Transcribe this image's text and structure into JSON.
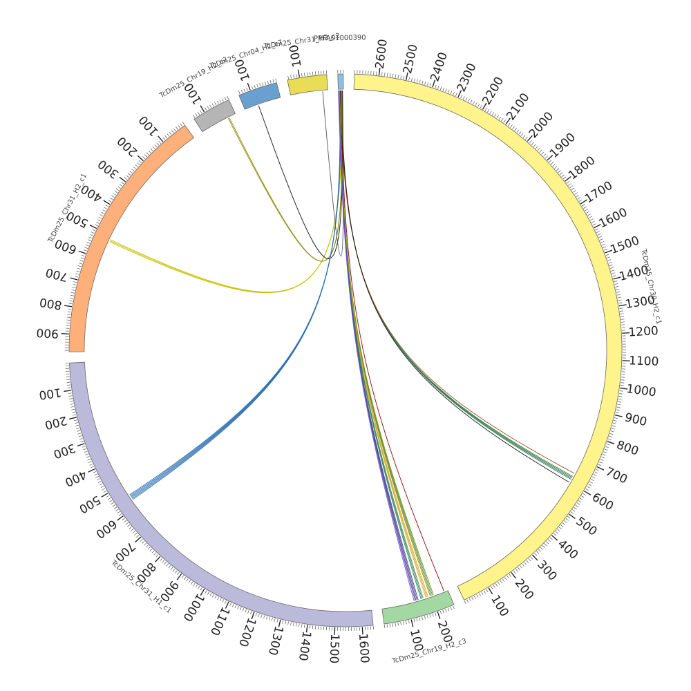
{
  "diagram": {
    "type": "circos",
    "segments": [
      {
        "id": "PRFA",
        "label": "PRFA01000390",
        "length": 20,
        "color": "#8dc0df",
        "label_every": 100,
        "minor_every": 10
      },
      {
        "id": "chr30",
        "label": "TcDm25_Chr30_H2_c1",
        "length": 2690,
        "color": "#fff38b",
        "label_every": 100,
        "minor_every": 10
      },
      {
        "id": "chr19c3",
        "label": "TcDm25_Chr19_H2_c3",
        "length": 265,
        "color": "#a3d8a3",
        "label_every": 100,
        "minor_every": 10
      },
      {
        "id": "chr31h1",
        "label": "TcDm25_Chr31_H1_c1",
        "length": 1640,
        "color": "#bcbada",
        "label_every": 100,
        "minor_every": 10
      },
      {
        "id": "chr31h2",
        "label": "TcDm25_Chr31_H2_c1",
        "length": 965,
        "color": "#ffb07a",
        "label_every": 100,
        "minor_every": 10
      },
      {
        "id": "chr19",
        "label": "TcDm25_Chr19_H2_c2",
        "length": 145,
        "color": "#b5b5b5",
        "label_every": 100,
        "minor_every": 10
      },
      {
        "id": "chr04",
        "label": "TcDm25_Chr04_H2_c7",
        "length": 145,
        "color": "#6aa0cf",
        "label_every": 100,
        "minor_every": 10
      },
      {
        "id": "chr31h2b",
        "label": "TcDm25_Chr31_H2_c2",
        "length": 145,
        "color": "#e8dd55",
        "label_every": 100,
        "minor_every": 10
      }
    ],
    "links": [
      {
        "from": [
          "PRFA",
          10
        ],
        "to": [
          "chr30",
          620
        ],
        "color": "#2f7a4a",
        "count": 4
      },
      {
        "from": [
          "PRFA",
          12
        ],
        "to": [
          "chr30",
          640
        ],
        "color": "#a0522d",
        "count": 1
      },
      {
        "from": [
          "PRFA",
          8
        ],
        "to": [
          "chr30",
          600
        ],
        "color": "#111111",
        "count": 1
      },
      {
        "from": [
          "PRFA",
          6
        ],
        "to": [
          "chr31h2",
          520
        ],
        "color": "#c8c000",
        "count": 3
      },
      {
        "from": [
          "PRFA",
          5
        ],
        "to": [
          "chr19",
          30
        ],
        "color": "#8a8a00",
        "count": 2
      },
      {
        "from": [
          "PRFA",
          4
        ],
        "to": [
          "chr04",
          90
        ],
        "color": "#111111",
        "count": 1
      },
      {
        "from": [
          "PRFA",
          3
        ],
        "to": [
          "chr31h2b",
          20
        ],
        "color": "#555555",
        "count": 1
      },
      {
        "from": [
          "PRFA",
          14
        ],
        "to": [
          "chr31h1",
          560
        ],
        "color": "#2a6fb0",
        "count": 6
      },
      {
        "from": [
          "PRFA",
          11
        ],
        "to": [
          "chr19c3",
          250
        ],
        "color": "#8b0000",
        "count": 1
      },
      {
        "from": [
          "PRFA",
          15
        ],
        "to": [
          "chr19c3",
          200
        ],
        "color": "#6b8e23",
        "count": 4
      },
      {
        "from": [
          "PRFA",
          16
        ],
        "to": [
          "chr19c3",
          180
        ],
        "color": "#daa520",
        "count": 3
      },
      {
        "from": [
          "PRFA",
          17
        ],
        "to": [
          "chr19c3",
          160
        ],
        "color": "#2e8b57",
        "count": 3
      },
      {
        "from": [
          "PRFA",
          18
        ],
        "to": [
          "chr19c3",
          140
        ],
        "color": "#483d8b",
        "count": 3
      },
      {
        "from": [
          "PRFA",
          19
        ],
        "to": [
          "chr19c3",
          130
        ],
        "color": "#6a5acd",
        "count": 2
      }
    ]
  }
}
